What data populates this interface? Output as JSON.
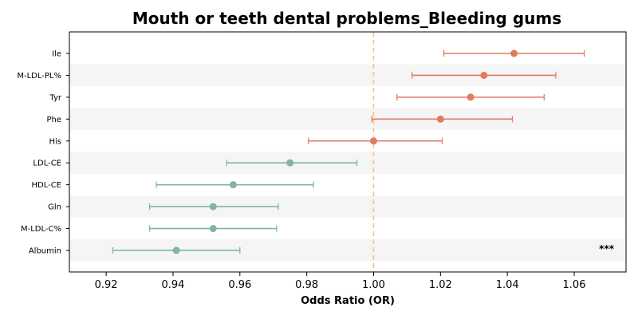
{
  "chart_data": {
    "type": "scatter",
    "subtype": "forest-plot",
    "title": "Mouth or teeth dental problems_Bleeding gums",
    "xlabel": "Odds Ratio (OR)",
    "ylabel": "",
    "xlim": [
      0.909,
      1.0755
    ],
    "xticks": [
      "0.92",
      "0.94",
      "0.96",
      "0.98",
      "1.00",
      "1.02",
      "1.04",
      "1.06"
    ],
    "reference_line": 1.0,
    "grid": false,
    "row_banding": true,
    "colors": {
      "positive": "#e07b60",
      "negative": "#82b59c",
      "reference": "#f5c27a",
      "band": "#f5f5f5"
    },
    "rows": [
      {
        "label": "Ile",
        "or": 1.042,
        "lower": 1.021,
        "upper": 1.063,
        "group": "positive"
      },
      {
        "label": "M-LDL-PL%",
        "or": 1.033,
        "lower": 1.0115,
        "upper": 1.0545,
        "group": "positive"
      },
      {
        "label": "Tyr",
        "or": 1.029,
        "lower": 1.007,
        "upper": 1.051,
        "group": "positive"
      },
      {
        "label": "Phe",
        "or": 1.02,
        "lower": 0.9995,
        "upper": 1.0415,
        "group": "positive"
      },
      {
        "label": "His",
        "or": 1.0,
        "lower": 0.9805,
        "upper": 1.0205,
        "group": "positive"
      },
      {
        "label": "LDL-CE",
        "or": 0.975,
        "lower": 0.956,
        "upper": 0.995,
        "group": "negative"
      },
      {
        "label": "HDL-CE",
        "or": 0.958,
        "lower": 0.935,
        "upper": 0.982,
        "group": "negative"
      },
      {
        "label": "Gln",
        "or": 0.952,
        "lower": 0.933,
        "upper": 0.9715,
        "group": "negative"
      },
      {
        "label": "M-LDL-C%",
        "or": 0.952,
        "lower": 0.933,
        "upper": 0.971,
        "group": "negative"
      },
      {
        "label": "Albumin",
        "or": 0.941,
        "lower": 0.922,
        "upper": 0.96,
        "group": "negative",
        "annotation": "***"
      }
    ]
  }
}
